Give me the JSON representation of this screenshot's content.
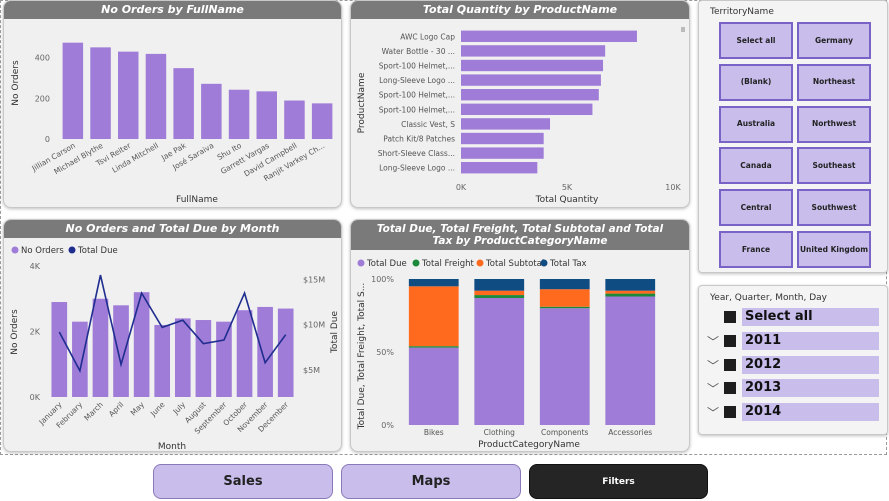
{
  "colors": {
    "purple": "#9f7cd8",
    "navy": "#1f2d8f",
    "green": "#1b8a3a",
    "orange": "#ff6a1f",
    "dark_blue": "#0f4c82"
  },
  "charts": {
    "orders_by_name": {
      "title": "No Orders by FullName",
      "xlabel": "FullName",
      "ylabel": "No Orders",
      "y_ticks": [
        "400",
        "200",
        "0"
      ]
    },
    "qty_by_product": {
      "title": "Total Quantity by ProductName",
      "xlabel": "Total Quantity",
      "ylabel": "ProductName",
      "x_ticks": [
        "0K",
        "5K",
        "10K"
      ]
    },
    "orders_due_by_month": {
      "title": "No Orders and Total Due by Month",
      "xlabel": "Month",
      "ylabel_left": "No Orders",
      "ylabel_right": "Total Due",
      "y_left_ticks": [
        "4K",
        "2K",
        "0K"
      ],
      "y_right_ticks": [
        "$15M",
        "$10M",
        "$5M"
      ],
      "legend": [
        "No Orders",
        "Total Due"
      ]
    },
    "totals_by_category": {
      "title": "Total Due, Total Freight, Total Subtotal and Total Tax by ProductCategoryName",
      "xlabel": "ProductCategoryName",
      "ylabel": "Total Due, Total Freight, Total S...",
      "y_ticks": [
        "100%",
        "50%",
        "0%"
      ],
      "legend": [
        "Total Due",
        "Total Freight",
        "Total Subtotal",
        "Total Tax"
      ]
    }
  },
  "chart_data": [
    {
      "type": "bar",
      "title": "No Orders by FullName",
      "xlabel": "FullName",
      "ylabel": "No Orders",
      "ylim": [
        0,
        550
      ],
      "categories": [
        "Jillian Carson",
        "Michael Blythe",
        "Tsvi Reiter",
        "Linda Mitchell",
        "Jae Pak",
        "José Saraiva",
        "Shu Ito",
        "Garrett Vargas",
        "David Campbell",
        "Ranjit Varkey Ch..."
      ],
      "values": [
        473,
        450,
        429,
        418,
        348,
        271,
        242,
        234,
        189,
        175
      ]
    },
    {
      "type": "bar",
      "orientation": "horizontal",
      "title": "Total Quantity by ProductName",
      "xlabel": "Total Quantity",
      "ylabel": "ProductName",
      "xlim": [
        0,
        10000
      ],
      "categories": [
        "AWC Logo Cap",
        "Water Bottle - 30 ...",
        "Sport-100 Helmet,...",
        "Long-Sleeve Logo ...",
        "Sport-100 Helmet,...",
        "Sport-100 Helmet,...",
        "Classic Vest, S",
        "Patch Kit/8 Patches",
        "Short-Sleeve Class...",
        "Long-Sleeve Logo ..."
      ],
      "values": [
        8300,
        6800,
        6700,
        6600,
        6500,
        6200,
        4200,
        3900,
        3900,
        3600
      ]
    },
    {
      "type": "bar+line",
      "title": "No Orders and Total Due by Month",
      "xlabel": "Month",
      "categories": [
        "January",
        "February",
        "March",
        "April",
        "May",
        "June",
        "July",
        "August",
        "September",
        "October",
        "November",
        "December"
      ],
      "series": [
        {
          "name": "No Orders",
          "type": "bar",
          "axis": "left",
          "ylim": [
            0,
            4000
          ],
          "values": [
            2900,
            2300,
            3000,
            2800,
            3200,
            2200,
            2400,
            2350,
            2300,
            2650,
            2750,
            2700
          ]
        },
        {
          "name": "Total Due",
          "type": "line",
          "axis": "right",
          "ylim": [
            2000000,
            16500000
          ],
          "values": [
            9200000,
            4900000,
            15500000,
            5600000,
            13500000,
            9700000,
            10500000,
            7900000,
            8300000,
            13500000,
            5800000,
            8900000
          ]
        }
      ]
    },
    {
      "type": "stacked-bar-100",
      "title": "Total Due, Total Freight, Total Subtotal and Total Tax by ProductCategoryName",
      "xlabel": "ProductCategoryName",
      "ylabel": "Total Due, Total Freight, Total S...",
      "categories": [
        "Bikes",
        "Clothing",
        "Components",
        "Accessories"
      ],
      "series": [
        {
          "name": "Total Due",
          "values": [
            53,
            87,
            80,
            88
          ]
        },
        {
          "name": "Total Freight",
          "values": [
            1,
            2,
            1,
            2
          ]
        },
        {
          "name": "Total Subtotal",
          "values": [
            41,
            3,
            12,
            2
          ]
        },
        {
          "name": "Total Tax",
          "values": [
            5,
            8,
            7,
            8
          ]
        }
      ]
    }
  ],
  "territory": {
    "title": "TerritoryName",
    "buttons": [
      "Select all",
      "Germany",
      "(Blank)",
      "Northeast",
      "Australia",
      "Northwest",
      "Canada",
      "Southeast",
      "Central",
      "Southwest",
      "France",
      "United Kingdom"
    ]
  },
  "date_slicer": {
    "title": "Year, Quarter, Month, Day",
    "items": [
      "Select all",
      "2011",
      "2012",
      "2013",
      "2014"
    ]
  },
  "nav": {
    "sales": "Sales",
    "maps": "Maps",
    "filters": "Filters"
  }
}
